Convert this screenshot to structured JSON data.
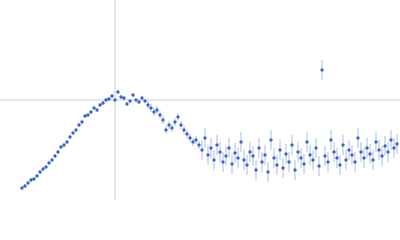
{
  "chart_data": {
    "type": "scatter",
    "color": "#3a64c4",
    "error_color": "#a9bbe6",
    "reference_color": "#c8ccd4",
    "xlim": [
      0,
      400
    ],
    "ylim": [
      0,
      200
    ],
    "reference_lines": {
      "x": 115,
      "y": 100
    },
    "x": [
      22,
      25,
      28,
      31,
      34,
      37,
      40,
      43,
      46,
      49,
      52,
      55,
      58,
      61,
      64,
      67,
      70,
      73,
      76,
      79,
      82,
      85,
      88,
      91,
      94,
      97,
      100,
      103,
      106,
      109,
      112,
      115,
      118,
      121,
      124,
      127,
      130,
      133,
      136,
      139,
      142,
      145,
      148,
      151,
      154,
      157,
      160,
      163,
      166,
      169,
      172,
      175,
      178,
      181,
      184,
      187,
      190,
      193,
      196,
      199,
      202,
      205,
      208,
      211,
      214,
      217,
      220,
      223,
      226,
      229,
      232,
      235,
      238,
      241,
      244,
      247,
      250,
      253,
      256,
      259,
      262,
      265,
      268,
      271,
      274,
      277,
      280,
      283,
      286,
      289,
      292,
      295,
      298,
      301,
      304,
      307,
      310,
      313,
      316,
      319,
      322,
      325,
      328,
      331,
      334,
      337,
      340,
      343,
      346,
      349,
      352,
      355,
      358,
      361,
      364,
      367,
      370,
      373,
      376,
      379,
      382,
      385,
      388,
      391,
      394,
      397
    ],
    "series": [
      {
        "values": [
          12,
          14,
          17,
          20,
          21,
          24,
          28,
          31,
          33,
          37,
          40,
          44,
          48,
          53,
          55,
          58,
          63,
          67,
          70,
          75,
          78,
          84,
          85,
          88,
          92,
          90,
          95,
          97,
          100,
          101,
          104,
          100,
          108,
          103,
          102,
          96,
          99,
          105,
          100,
          98,
          102,
          99,
          95,
          92,
          88,
          90,
          85,
          80,
          70,
          75,
          72,
          78,
          83,
          75,
          70,
          66,
          62,
          58,
          60,
          55,
          50,
          62,
          45,
          52,
          40,
          55,
          48,
          38,
          44,
          52,
          36,
          47,
          42,
          58,
          40,
          35,
          48,
          44,
          30,
          52,
          38,
          45,
          28,
          60,
          42,
          35,
          50,
          32,
          46,
          38,
          55,
          30,
          48,
          42,
          36,
          58,
          45,
          40,
          52,
          34,
          130,
          44,
          38,
          60,
          48,
          42,
          35,
          55,
          40,
          50,
          45,
          38,
          62,
          48,
          42,
          52,
          46,
          40,
          58,
          50,
          44,
          54,
          48,
          60,
          52,
          56
        ],
        "errors": [
          2,
          2,
          2,
          2,
          2,
          2,
          2,
          2,
          2,
          2,
          2,
          2,
          2,
          2,
          2,
          2,
          2,
          2,
          2,
          2,
          2,
          2,
          2,
          2,
          2,
          2,
          2,
          2,
          2,
          2,
          2,
          2,
          2,
          2,
          2,
          2,
          2,
          2,
          2,
          2,
          2,
          2,
          4,
          4,
          4,
          4,
          4,
          4,
          4,
          4,
          4,
          4,
          4,
          4,
          4,
          4,
          4,
          4,
          4,
          4,
          10,
          10,
          10,
          10,
          10,
          10,
          10,
          10,
          10,
          10,
          10,
          10,
          10,
          10,
          10,
          10,
          10,
          10,
          10,
          10,
          10,
          10,
          10,
          10,
          10,
          10,
          10,
          10,
          10,
          10,
          10,
          10,
          10,
          10,
          10,
          10,
          10,
          10,
          10,
          10,
          10,
          10,
          10,
          10,
          10,
          10,
          10,
          10,
          10,
          10,
          10,
          10,
          10,
          10,
          10,
          10,
          10,
          10,
          10,
          10,
          10,
          10,
          10,
          10,
          10,
          10
        ]
      }
    ]
  }
}
